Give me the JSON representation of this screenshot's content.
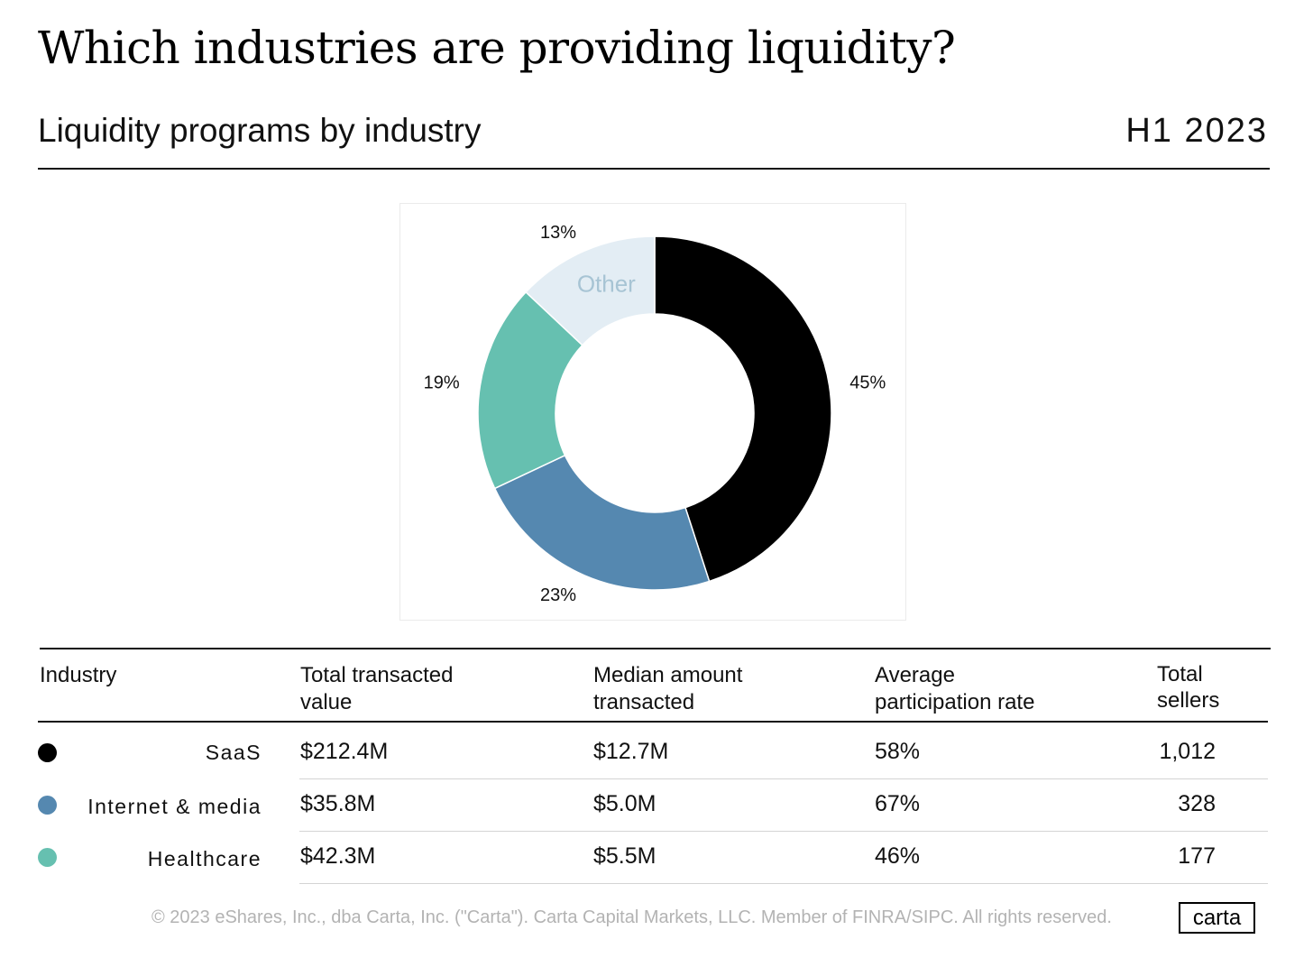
{
  "header": {
    "title": "Which industries are providing liquidity?",
    "subtitle": "Liquidity programs by industry",
    "period": "H1 2023"
  },
  "chart_data": {
    "type": "pie",
    "donut": true,
    "categories": [
      "SaaS",
      "Internet & media",
      "Healthcare",
      "Other"
    ],
    "values": [
      45,
      23,
      19,
      13
    ],
    "labels": [
      "45%",
      "23%",
      "19%",
      "13%"
    ],
    "annotations": [
      "Other"
    ],
    "colors": [
      "#000000",
      "#5588b0",
      "#66c0b0",
      "#e3edf4"
    ]
  },
  "table": {
    "headers": {
      "industry": "Industry",
      "total_line1": "Total transacted",
      "total_line2": "value",
      "median_line1": "Median amount",
      "median_line2": "transacted",
      "avg_line1": "Average",
      "avg_line2": "participation rate",
      "sellers_line1": "Total",
      "sellers_line2": "sellers"
    },
    "rows": [
      {
        "industry": "SaaS",
        "color": "#000000",
        "total": "$212.4M",
        "median": "$12.7M",
        "avg": "58%",
        "sellers": "1,012"
      },
      {
        "industry": "Internet & media",
        "color": "#5588b0",
        "total": "$35.8M",
        "median": "$5.0M",
        "avg": "67%",
        "sellers": "328"
      },
      {
        "industry": "Healthcare",
        "color": "#66c0b0",
        "total": "$42.3M",
        "median": "$5.5M",
        "avg": "46%",
        "sellers": "177"
      }
    ]
  },
  "footer": {
    "copyright": "© 2023 eShares, Inc., dba Carta, Inc. (\"Carta\"). Carta Capital Markets, LLC. Member of FINRA/SIPC. All rights reserved.",
    "logo": "carta"
  }
}
